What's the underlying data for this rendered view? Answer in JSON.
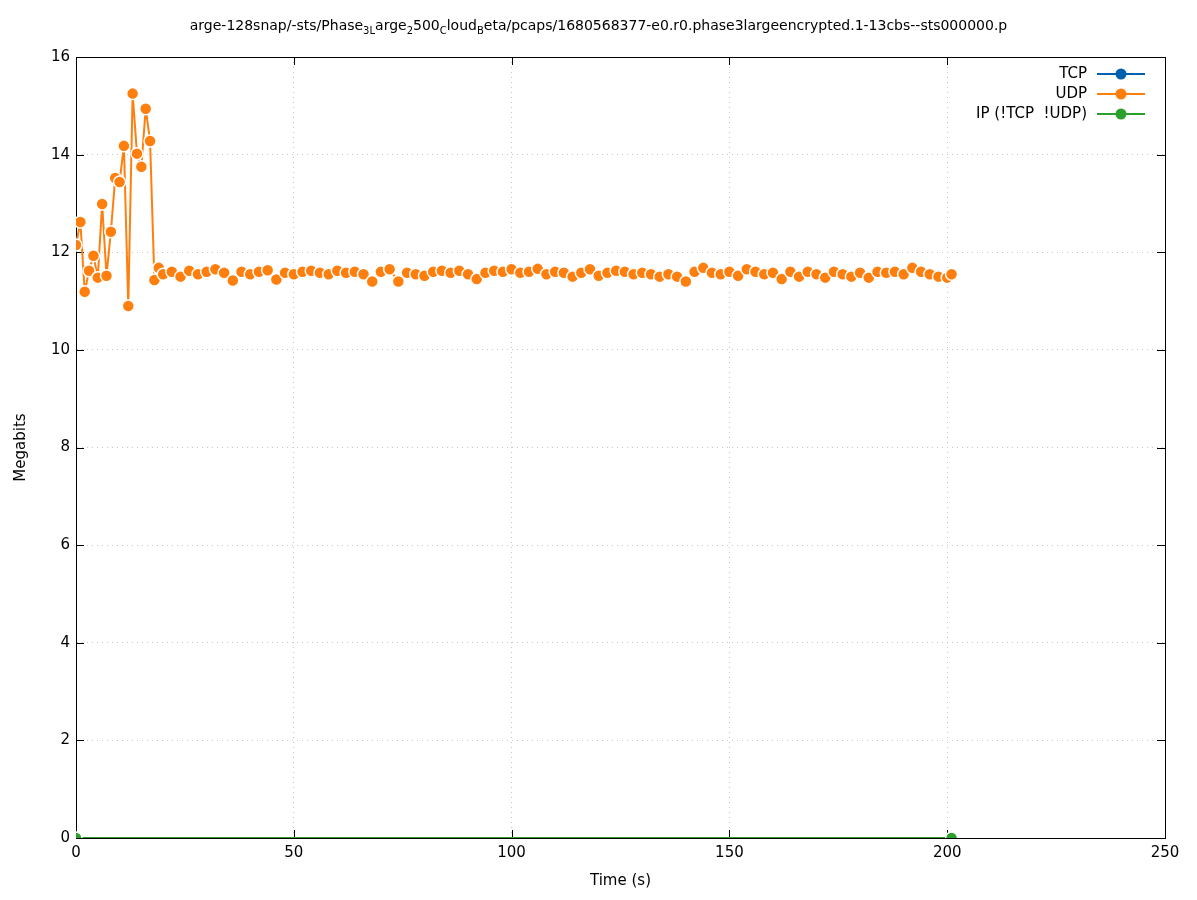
{
  "chart_data": {
    "type": "line",
    "title": "arge-128snap/-sts/Phase$_{3L}$arge$_{2}$500$_{C}$loud$_{B}$eta/pcaps/1680568377-e0.r0.phase3largeencrypted.1-13cbs--sts000000.p",
    "xlabel": "Time (s)",
    "ylabel": "Megabits",
    "xlim": [
      0,
      250
    ],
    "xticks": [
      0,
      50,
      100,
      150,
      200,
      250
    ],
    "ylim": [
      0,
      16
    ],
    "yticks": [
      0,
      2,
      4,
      6,
      8,
      10,
      12,
      14,
      16
    ],
    "grid": true,
    "legend": "top right",
    "marker": "circle",
    "line_style": "solid",
    "series": [
      {
        "name": "TCP",
        "color": "#0060ad"
      },
      {
        "name": "UDP",
        "color": "#ff7f0e",
        "x": [
          0,
          1,
          2,
          3,
          4,
          5,
          6,
          7,
          8,
          9,
          10,
          11,
          12,
          13,
          14,
          15,
          16,
          17,
          18,
          19,
          20,
          22,
          24,
          26,
          28,
          30,
          32,
          34,
          36,
          38,
          40,
          42,
          44,
          46,
          48,
          50,
          52,
          54,
          56,
          58,
          60,
          62,
          64,
          66,
          68,
          70,
          72,
          74,
          76,
          78,
          80,
          82,
          84,
          86,
          88,
          90,
          92,
          94,
          96,
          98,
          100,
          102,
          104,
          106,
          108,
          110,
          112,
          114,
          116,
          118,
          120,
          122,
          124,
          126,
          128,
          130,
          132,
          134,
          136,
          138,
          140,
          142,
          144,
          146,
          148,
          150,
          152,
          154,
          156,
          158,
          160,
          162,
          164,
          166,
          168,
          170,
          172,
          174,
          176,
          178,
          180,
          182,
          184,
          186,
          188,
          190,
          192,
          194,
          196,
          198,
          200,
          201
        ],
        "values": [
          12.15,
          12.62,
          11.19,
          11.62,
          11.93,
          11.48,
          12.99,
          11.52,
          12.42,
          13.52,
          13.44,
          14.18,
          10.9,
          15.25,
          14.02,
          13.75,
          14.94,
          14.28,
          11.43,
          11.68,
          11.55,
          11.6,
          11.5,
          11.62,
          11.55,
          11.6,
          11.65,
          11.58,
          11.42,
          11.6,
          11.55,
          11.6,
          11.63,
          11.44,
          11.58,
          11.55,
          11.6,
          11.62,
          11.58,
          11.55,
          11.62,
          11.58,
          11.6,
          11.55,
          11.4,
          11.6,
          11.65,
          11.4,
          11.58,
          11.55,
          11.52,
          11.6,
          11.62,
          11.58,
          11.62,
          11.55,
          11.45,
          11.58,
          11.62,
          11.6,
          11.65,
          11.58,
          11.6,
          11.66,
          11.55,
          11.6,
          11.58,
          11.5,
          11.58,
          11.65,
          11.52,
          11.58,
          11.62,
          11.6,
          11.55,
          11.58,
          11.55,
          11.5,
          11.55,
          11.5,
          11.4,
          11.6,
          11.68,
          11.58,
          11.55,
          11.6,
          11.52,
          11.65,
          11.6,
          11.55,
          11.58,
          11.45,
          11.6,
          11.5,
          11.6,
          11.55,
          11.48,
          11.6,
          11.55,
          11.5,
          11.58,
          11.48,
          11.6,
          11.58,
          11.6,
          11.55,
          11.68,
          11.6,
          11.55,
          11.5,
          11.48,
          11.55
        ]
      },
      {
        "name": "IP (!TCP  !UDP)",
        "color": "#2ca02c",
        "x": [
          0,
          201
        ],
        "values": [
          0,
          0
        ]
      }
    ]
  }
}
